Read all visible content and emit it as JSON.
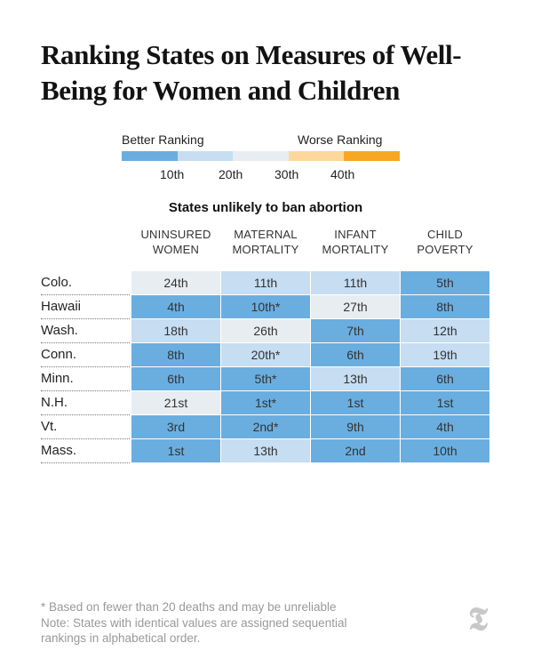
{
  "title": "Ranking States on Measures of Well-Being for Women and Children",
  "legend": {
    "better_label": "Better Ranking",
    "worse_label": "Worse Ranking",
    "ticks": [
      "10th",
      "20th",
      "30th",
      "40th"
    ],
    "colors": [
      "#6aaee0",
      "#c6ddf2",
      "#e8edf1",
      "#fdd89a",
      "#f7a823"
    ]
  },
  "chart_data": {
    "type": "table",
    "subtitle": "States unlikely to ban abortion",
    "columns": [
      [
        "UNINSURED",
        "WOMEN"
      ],
      [
        "MATERNAL",
        "MORTALITY"
      ],
      [
        "INFANT",
        "MORTALITY"
      ],
      [
        "CHILD",
        "POVERTY"
      ]
    ],
    "rows": [
      {
        "state": "Colo.",
        "values": [
          "24th",
          "11th",
          "11th",
          "5th"
        ]
      },
      {
        "state": "Hawaii",
        "values": [
          "4th",
          "10th*",
          "27th",
          "8th"
        ]
      },
      {
        "state": "Wash.",
        "values": [
          "18th",
          "26th",
          "7th",
          "12th"
        ]
      },
      {
        "state": "Conn.",
        "values": [
          "8th",
          "20th*",
          "6th",
          "19th"
        ]
      },
      {
        "state": "Minn.",
        "values": [
          "6th",
          "5th*",
          "13th",
          "6th"
        ]
      },
      {
        "state": "N.H.",
        "values": [
          "21st",
          "1st*",
          "1st",
          "1st"
        ]
      },
      {
        "state": "Vt.",
        "values": [
          "3rd",
          "2nd*",
          "9th",
          "4th"
        ]
      },
      {
        "state": "Mass.",
        "values": [
          "1st",
          "13th",
          "2nd",
          "10th"
        ]
      }
    ]
  },
  "notes": {
    "footnote": "* Based on fewer than 20 deaths and may be unreliable",
    "line1": "Note: States with identical values are assigned sequential",
    "line2": "rankings in alphabetical order."
  },
  "logo": {
    "glyph": "𝕿",
    "icon": "nyt-logo-icon"
  }
}
